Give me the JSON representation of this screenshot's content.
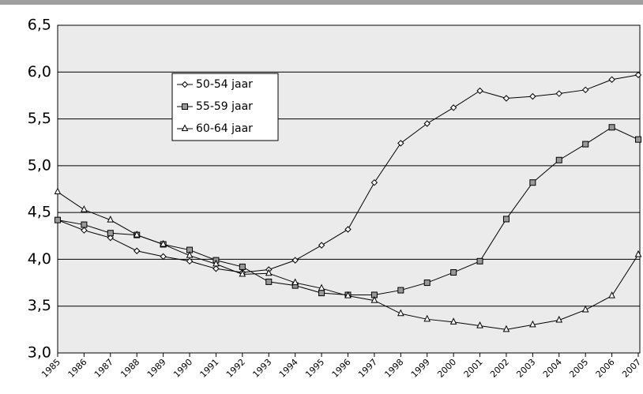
{
  "chart_data": {
    "type": "line",
    "categories": [
      "1985",
      "1986",
      "1987",
      "1988",
      "1989",
      "1990",
      "1991",
      "1992",
      "1993",
      "1994",
      "1995",
      "1996",
      "1997",
      "1998",
      "1999",
      "2000",
      "2001",
      "2002",
      "2003",
      "2004",
      "2005",
      "2006",
      "2007"
    ],
    "series": [
      {
        "name": "50-54 jaar",
        "color": "#000000",
        "marker": "diamond",
        "values": [
          4.42,
          4.31,
          4.23,
          4.09,
          4.03,
          3.98,
          3.9,
          3.86,
          3.89,
          3.99,
          4.15,
          4.32,
          4.82,
          5.24,
          5.45,
          5.62,
          5.8,
          5.72,
          5.74,
          5.77,
          5.81,
          5.92,
          5.97
        ]
      },
      {
        "name": "55-59 jaar",
        "color": "#000000",
        "marker": "square",
        "values": [
          4.42,
          4.37,
          4.28,
          4.26,
          4.16,
          4.1,
          3.99,
          3.92,
          3.76,
          3.72,
          3.64,
          3.62,
          3.62,
          3.67,
          3.75,
          3.86,
          3.98,
          4.43,
          4.82,
          5.06,
          5.23,
          5.41,
          5.28
        ]
      },
      {
        "name": "60-64 jaar",
        "color": "#000000",
        "marker": "triangle",
        "values": [
          4.72,
          4.53,
          4.42,
          4.26,
          4.16,
          4.04,
          3.95,
          3.84,
          3.85,
          3.75,
          3.69,
          3.61,
          3.56,
          3.42,
          3.36,
          3.33,
          3.29,
          3.25,
          3.3,
          3.35,
          3.46,
          3.61,
          4.05
        ]
      }
    ],
    "ylim": [
      3.0,
      6.5
    ],
    "yticks": [
      {
        "value": 3.0,
        "label": "3,0"
      },
      {
        "value": 3.5,
        "label": "3,5"
      },
      {
        "value": 4.0,
        "label": "4,0"
      },
      {
        "value": 4.5,
        "label": "4,5"
      },
      {
        "value": 5.0,
        "label": "5,0"
      },
      {
        "value": 5.5,
        "label": "5,5"
      },
      {
        "value": 6.0,
        "label": "6,0"
      },
      {
        "value": 6.5,
        "label": "6,5"
      }
    ],
    "grid": true
  }
}
